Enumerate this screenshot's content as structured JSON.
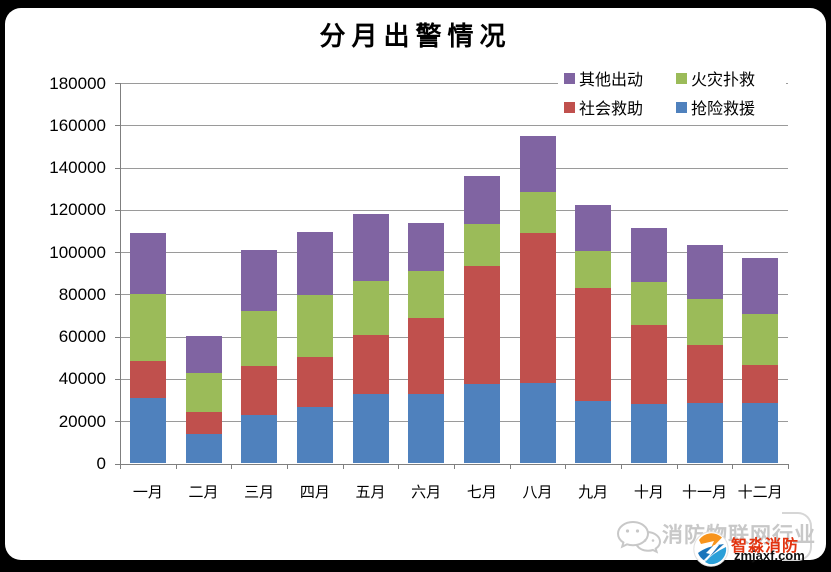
{
  "page": {
    "background_color": "#000000",
    "card_color": "#ffffff"
  },
  "chart_data": {
    "type": "bar",
    "stacked": true,
    "title": "分月出警情况",
    "categories": [
      "一月",
      "二月",
      "三月",
      "四月",
      "五月",
      "六月",
      "七月",
      "八月",
      "九月",
      "十月",
      "十一月",
      "十二月"
    ],
    "series": [
      {
        "name": "抢险救援",
        "color": "#4F81BD",
        "values": [
          31000,
          14000,
          23000,
          26500,
          33000,
          33000,
          37500,
          38000,
          29500,
          28000,
          28500,
          28500
        ]
      },
      {
        "name": "社会救助",
        "color": "#C0504D",
        "values": [
          17500,
          10500,
          23000,
          24000,
          28000,
          36000,
          56000,
          71000,
          53500,
          37500,
          27500,
          18000
        ]
      },
      {
        "name": "火灾扑救",
        "color": "#9BBB59",
        "values": [
          31500,
          18500,
          26000,
          29000,
          25500,
          22000,
          20000,
          19500,
          17500,
          20500,
          22000,
          24000
        ]
      },
      {
        "name": "其他出动",
        "color": "#8064A2",
        "values": [
          29000,
          17500,
          29000,
          30000,
          31500,
          23000,
          22500,
          26500,
          22000,
          25500,
          25500,
          26500
        ]
      }
    ],
    "totals": [
      109000,
      60500,
      101000,
      109500,
      118000,
      114000,
      136000,
      155000,
      122500,
      111500,
      103500,
      97000
    ],
    "ylim": [
      0,
      180000
    ],
    "ytick_step": 20000,
    "yticks": [
      "180000",
      "160000",
      "140000",
      "120000",
      "100000",
      "80000",
      "60000",
      "40000",
      "20000",
      "0"
    ],
    "xlabel": "",
    "ylabel": "",
    "grid": true,
    "legend_position": "top-right"
  },
  "legend": {
    "items": [
      {
        "label": "其他出动",
        "color": "#8064A2"
      },
      {
        "label": "火灾扑救",
        "color": "#9BBB59"
      },
      {
        "label": "社会救助",
        "color": "#C0504D"
      },
      {
        "label": "抢险救援",
        "color": "#4F81BD"
      }
    ]
  },
  "watermark": {
    "wechat_text": "消防物联网行业",
    "brand_name": "智淼消防",
    "brand_url": "zmjaxf.com",
    "text_color": "#c8c8c8",
    "brand_color": "#e3330f"
  }
}
